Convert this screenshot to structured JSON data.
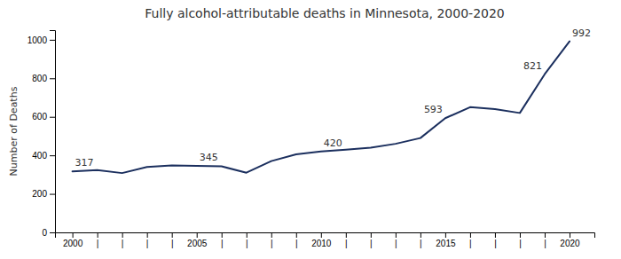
{
  "chart_data": {
    "type": "line",
    "title": "Fully alcohol-attributable deaths in Minnesota, 2000-2020",
    "ylabel": "Number of Deaths",
    "x": [
      2000,
      2001,
      2002,
      2003,
      2004,
      2005,
      2006,
      2007,
      2008,
      2009,
      2010,
      2011,
      2012,
      2013,
      2014,
      2015,
      2016,
      2017,
      2018,
      2019,
      2020
    ],
    "values": [
      317,
      323,
      308,
      340,
      348,
      345,
      343,
      310,
      370,
      405,
      420,
      430,
      440,
      460,
      490,
      593,
      650,
      640,
      620,
      821,
      992
    ],
    "color": "#1b2f5e",
    "xlim": [
      1999.3,
      2021.0
    ],
    "xticks": [
      2000,
      {
        "value": 2001,
        "label": "|"
      },
      {
        "value": 2002,
        "label": "|"
      },
      {
        "value": 2003,
        "label": "|"
      },
      {
        "value": 2004,
        "label": "|"
      },
      2005,
      {
        "value": 2006,
        "label": "|"
      },
      {
        "value": 2007,
        "label": "|"
      },
      {
        "value": 2008,
        "label": "|"
      },
      {
        "value": 2009,
        "label": "|"
      },
      2010,
      {
        "value": 2011,
        "label": "|"
      },
      {
        "value": 2012,
        "label": "|"
      },
      {
        "value": 2013,
        "label": "|"
      },
      {
        "value": 2014,
        "label": "|"
      },
      2015,
      {
        "value": 2016,
        "label": "|"
      },
      {
        "value": 2017,
        "label": "|"
      },
      {
        "value": 2018,
        "label": "|"
      },
      {
        "value": 2019,
        "label": "|"
      },
      2020
    ],
    "ylim": [
      0,
      1050
    ],
    "yticks": [
      0,
      200,
      400,
      600,
      800,
      1000
    ],
    "grid": false,
    "annotations": [
      {
        "x": 2000,
        "y": 317,
        "text": "317"
      },
      {
        "x": 2005,
        "y": 345,
        "text": "345"
      },
      {
        "x": 2010,
        "y": 420,
        "text": "420"
      },
      {
        "x": 2015,
        "y": 593,
        "text": "593"
      },
      {
        "x": 2019,
        "y": 821,
        "text": "821"
      },
      {
        "x": 2020,
        "y": 992,
        "text": "992"
      }
    ]
  }
}
